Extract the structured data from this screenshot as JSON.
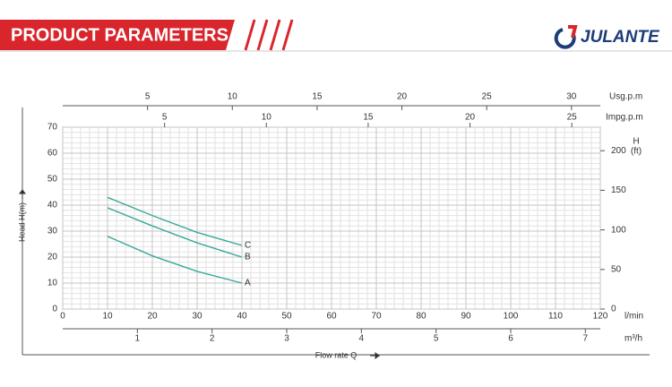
{
  "header": {
    "title": "PRODUCT PARAMETERS",
    "brand": "JULANTE"
  },
  "chart_data": {
    "type": "line",
    "x": [
      10,
      20,
      30,
      40
    ],
    "series": [
      {
        "name": "A",
        "color": "#3aa89a",
        "values": [
          28,
          20.5,
          14.5,
          10
        ]
      },
      {
        "name": "B",
        "color": "#3aa89a",
        "values": [
          39,
          32,
          25.5,
          20
        ]
      },
      {
        "name": "C",
        "color": "#3aa89a",
        "values": [
          43,
          36,
          29.5,
          24.5
        ]
      }
    ],
    "xlim": [
      0,
      120
    ],
    "xticks": [
      0,
      10,
      20,
      30,
      40,
      50,
      60,
      70,
      80,
      90,
      100,
      110,
      120
    ],
    "x_unit": "l/min",
    "x_label": "Flow rate Q",
    "ylim": [
      0,
      70
    ],
    "yticks": [
      0,
      10,
      20,
      30,
      40,
      50,
      60,
      70
    ],
    "y_label": "Head H(m)",
    "y2lim": [
      0,
      229.7
    ],
    "y2ticks": [
      0,
      50,
      100,
      150,
      200
    ],
    "y2_label": [
      "H",
      "(ft)"
    ],
    "x2lim": [
      0,
      31.7
    ],
    "x2ticks": [
      5,
      10,
      15,
      20,
      25,
      30
    ],
    "x2_unit": "Usg.p.m",
    "x3lim": [
      0,
      26.4
    ],
    "x3ticks": [
      5,
      10,
      15,
      20,
      25
    ],
    "x3_unit": "Impg.p.m",
    "x4lim": [
      0,
      7.2
    ],
    "x4ticks": [
      1,
      2,
      3,
      4,
      5,
      6,
      7
    ],
    "x4_unit": "m³/h",
    "grid": true
  }
}
